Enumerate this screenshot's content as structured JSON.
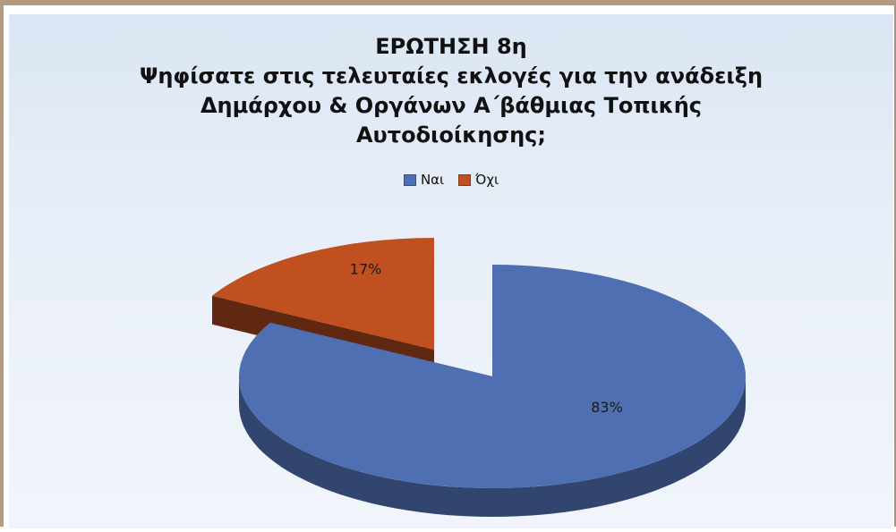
{
  "chart_data": {
    "type": "pie",
    "title_lines": [
      "ΕΡΩΤΗΣΗ 8η",
      "Ψηφίσατε στις τελευταίες εκλογές για την ανάδειξη",
      "Δημάρχου & Οργάνων Α΄βάθμιας Τοπικής",
      "Αυτοδιοίκησης;"
    ],
    "categories": [
      "Ναι",
      "Όχι"
    ],
    "values": [
      83,
      17
    ],
    "data_labels": [
      "83%",
      "17%"
    ],
    "colors": {
      "Ναι": "#4f6fb3",
      "Όχι": "#c0501f"
    },
    "legend_position": "top",
    "style": "3d-exploded"
  }
}
